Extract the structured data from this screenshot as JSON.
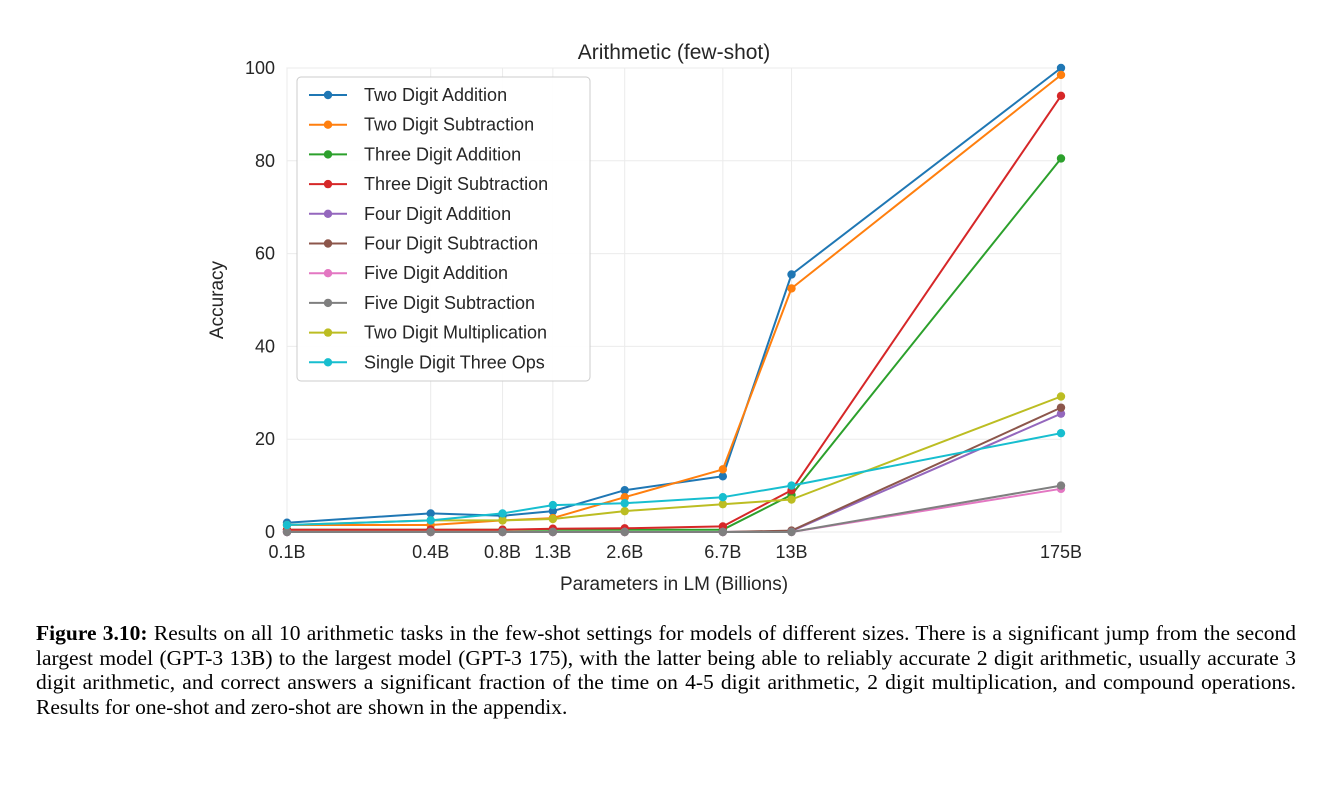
{
  "chart_data": {
    "type": "line",
    "title": "Arithmetic (few-shot)",
    "xlabel": "Parameters in LM (Billions)",
    "ylabel": "Accuracy",
    "x": [
      "0.1B",
      "0.4B",
      "0.8B",
      "1.3B",
      "2.6B",
      "6.7B",
      "13B",
      "175B"
    ],
    "x_values": [
      0.1,
      0.4,
      0.8,
      1.3,
      2.6,
      6.7,
      13,
      175
    ],
    "x_scale": "log",
    "ylim": [
      0,
      100
    ],
    "yticks": [
      0,
      20,
      40,
      60,
      80,
      100
    ],
    "grid": true,
    "legend_position": "upper-left",
    "series": [
      {
        "name": "Two Digit Addition",
        "color": "#1f77b4",
        "values": [
          2.0,
          4.0,
          3.5,
          4.5,
          9.0,
          12.0,
          55.5,
          100.0
        ]
      },
      {
        "name": "Two Digit Subtraction",
        "color": "#ff7f0e",
        "values": [
          1.5,
          1.5,
          2.5,
          3.0,
          7.5,
          13.5,
          52.5,
          98.5
        ]
      },
      {
        "name": "Three Digit Addition",
        "color": "#2ca02c",
        "values": [
          0.5,
          0.5,
          0.5,
          0.5,
          0.5,
          0.5,
          8.0,
          80.5
        ]
      },
      {
        "name": "Three Digit Subtraction",
        "color": "#d62728",
        "values": [
          0.5,
          0.5,
          0.5,
          0.7,
          0.8,
          1.2,
          9.0,
          94.0
        ]
      },
      {
        "name": "Four Digit Addition",
        "color": "#9467bd",
        "values": [
          0.0,
          0.0,
          0.0,
          0.0,
          0.0,
          0.0,
          0.2,
          25.5
        ]
      },
      {
        "name": "Four Digit Subtraction",
        "color": "#8c564b",
        "values": [
          0.0,
          0.0,
          0.0,
          0.0,
          0.0,
          0.0,
          0.3,
          26.8
        ]
      },
      {
        "name": "Five Digit Addition",
        "color": "#e377c2",
        "values": [
          0.0,
          0.0,
          0.0,
          0.0,
          0.0,
          0.0,
          0.0,
          9.3
        ]
      },
      {
        "name": "Five Digit Subtraction",
        "color": "#7f7f7f",
        "values": [
          0.0,
          0.0,
          0.0,
          0.0,
          0.0,
          0.0,
          0.0,
          10.0
        ]
      },
      {
        "name": "Two Digit Multiplication",
        "color": "#bcbd22",
        "values": [
          1.5,
          2.5,
          2.5,
          2.8,
          4.5,
          6.0,
          7.0,
          29.2
        ]
      },
      {
        "name": "Single Digit Three Ops",
        "color": "#17becf",
        "values": [
          1.5,
          2.5,
          4.0,
          5.8,
          6.2,
          7.5,
          10.0,
          21.3
        ]
      }
    ]
  },
  "caption": {
    "label": "Figure 3.10:",
    "text": "Results on all 10 arithmetic tasks in the few-shot settings for models of different sizes. There is a significant jump from the second largest model (GPT-3 13B) to the largest model (GPT-3 175), with the latter being able to reliably accurate 2 digit arithmetic, usually accurate 3 digit arithmetic, and correct answers a significant fraction of the time on 4-5 digit arithmetic, 2 digit multiplication, and compound operations. Results for one-shot and zero-shot are shown in the appendix."
  }
}
